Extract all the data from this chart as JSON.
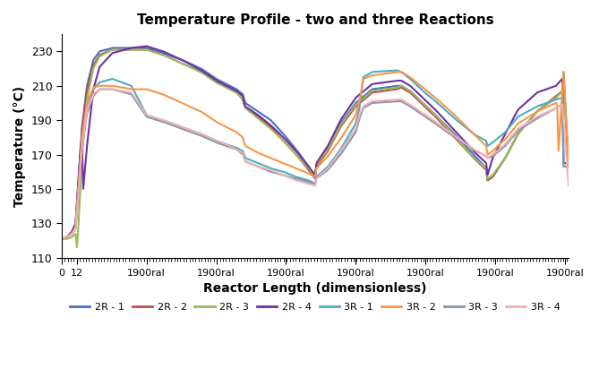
{
  "title": "Temperature Profile - two and three Reactions",
  "xlabel": "Reactor Length (dimensionless)",
  "ylabel": "Temperature (°C)",
  "ylim": [
    110,
    240
  ],
  "yticks": [
    110,
    130,
    150,
    170,
    190,
    210,
    230
  ],
  "xtick_positions": [
    0,
    12,
    67,
    122,
    177,
    232,
    287,
    342,
    397
  ],
  "xtick_labels": [
    "0",
    "12",
    "1900ral",
    "1900ral",
    "1900ral",
    "1900ral",
    "1900ral",
    "1900ral",
    "1900ral"
  ],
  "legend": [
    {
      "label": "2R - 1",
      "color": "#4472C4"
    },
    {
      "label": "2R - 2",
      "color": "#C0504D"
    },
    {
      "label": "2R - 3",
      "color": "#9BBB59"
    },
    {
      "label": "2R - 4",
      "color": "#7030A0"
    },
    {
      "label": "3R - 1",
      "color": "#4BACC6"
    },
    {
      "label": "3R - 2",
      "color": "#F79646"
    },
    {
      "label": "3R - 3",
      "color": "#8496B0"
    },
    {
      "label": "3R - 4",
      "color": "#F4AEAC"
    }
  ],
  "bg_color": "#FFFFFF",
  "line_width": 1.5,
  "xlim": [
    0,
    400
  ],
  "profiles": {
    "2R - 1": {
      "color": "#4472C4",
      "xpts": [
        0,
        4,
        8,
        11,
        13,
        16,
        20,
        25,
        30,
        40,
        55,
        67,
        80,
        95,
        110,
        122,
        130,
        138,
        143,
        144,
        145,
        155,
        165,
        175,
        185,
        195,
        200,
        201,
        210,
        220,
        232,
        245,
        265,
        268,
        275,
        285,
        295,
        310,
        325,
        335,
        336,
        340,
        350,
        360,
        375,
        390,
        395,
        396,
        400
      ],
      "ypts": [
        121,
        122,
        125,
        130,
        152,
        186,
        210,
        225,
        230,
        232,
        232,
        232,
        229,
        225,
        220,
        214,
        211,
        208,
        205,
        202,
        200,
        195,
        190,
        182,
        173,
        163,
        157,
        164,
        174,
        188,
        200,
        208,
        210,
        210,
        207,
        200,
        193,
        182,
        170,
        162,
        155,
        157,
        168,
        182,
        195,
        203,
        207,
        218,
        163
      ]
    },
    "2R - 2": {
      "color": "#C0504D",
      "xpts": [
        0,
        4,
        8,
        11,
        13,
        16,
        20,
        25,
        30,
        40,
        55,
        67,
        80,
        95,
        110,
        122,
        130,
        138,
        143,
        144,
        145,
        155,
        165,
        175,
        185,
        195,
        200,
        201,
        210,
        220,
        232,
        245,
        265,
        268,
        275,
        285,
        295,
        310,
        325,
        335,
        336,
        340,
        350,
        360,
        375,
        390,
        395,
        396,
        400
      ],
      "ypts": [
        121,
        122,
        125,
        129,
        150,
        183,
        207,
        222,
        228,
        231,
        231,
        231,
        228,
        223,
        218,
        212,
        209,
        206,
        202,
        199,
        197,
        192,
        186,
        178,
        170,
        161,
        156,
        163,
        172,
        186,
        198,
        206,
        208,
        209,
        206,
        199,
        192,
        180,
        168,
        161,
        155,
        157,
        168,
        182,
        195,
        204,
        207,
        211,
        163
      ]
    },
    "2R - 3": {
      "color": "#9BBB59",
      "xpts": [
        0,
        4,
        8,
        11,
        12,
        13,
        16,
        20,
        25,
        30,
        40,
        55,
        67,
        80,
        95,
        110,
        122,
        130,
        138,
        143,
        144,
        145,
        155,
        165,
        175,
        185,
        195,
        200,
        201,
        210,
        220,
        232,
        245,
        265,
        268,
        275,
        285,
        295,
        310,
        325,
        335,
        336,
        340,
        350,
        360,
        375,
        390,
        395,
        396,
        400
      ],
      "ypts": [
        121,
        121,
        122,
        124,
        116,
        125,
        168,
        202,
        220,
        227,
        231,
        231,
        231,
        228,
        223,
        218,
        212,
        209,
        206,
        202,
        199,
        197,
        191,
        185,
        178,
        170,
        162,
        157,
        164,
        173,
        187,
        199,
        207,
        209,
        210,
        207,
        200,
        193,
        181,
        168,
        162,
        156,
        158,
        168,
        182,
        195,
        203,
        207,
        212,
        163
      ]
    },
    "2R - 4": {
      "color": "#7030A0",
      "xpts": [
        0,
        4,
        8,
        11,
        13,
        15,
        16,
        17,
        20,
        25,
        30,
        40,
        55,
        67,
        80,
        95,
        110,
        122,
        130,
        138,
        143,
        144,
        145,
        155,
        165,
        175,
        185,
        195,
        200,
        201,
        210,
        220,
        232,
        245,
        265,
        268,
        275,
        285,
        295,
        310,
        325,
        335,
        336,
        340,
        350,
        360,
        375,
        390,
        395,
        396,
        400
      ],
      "ypts": [
        121,
        122,
        125,
        130,
        152,
        175,
        178,
        150,
        175,
        208,
        221,
        229,
        232,
        233,
        230,
        225,
        219,
        213,
        210,
        207,
        204,
        200,
        198,
        193,
        187,
        180,
        172,
        163,
        158,
        165,
        175,
        190,
        203,
        211,
        213,
        213,
        210,
        203,
        196,
        184,
        172,
        165,
        158,
        168,
        182,
        196,
        206,
        210,
        214,
        165,
        165
      ]
    },
    "3R - 1": {
      "color": "#4BACC6",
      "xpts": [
        0,
        4,
        8,
        11,
        13,
        16,
        20,
        25,
        30,
        40,
        55,
        67,
        80,
        95,
        110,
        122,
        130,
        138,
        143,
        144,
        145,
        155,
        165,
        175,
        185,
        195,
        200,
        201,
        210,
        220,
        232,
        235,
        238,
        245,
        265,
        268,
        275,
        285,
        295,
        310,
        325,
        335,
        336,
        340,
        350,
        360,
        375,
        390,
        395,
        396,
        400
      ],
      "ypts": [
        121,
        122,
        124,
        127,
        145,
        176,
        198,
        208,
        212,
        214,
        210,
        193,
        190,
        186,
        182,
        178,
        176,
        174,
        172,
        170,
        168,
        165,
        162,
        160,
        157,
        155,
        153,
        157,
        163,
        173,
        188,
        197,
        215,
        218,
        219,
        218,
        214,
        207,
        201,
        191,
        182,
        178,
        175,
        177,
        183,
        192,
        198,
        202,
        203,
        163,
        163
      ]
    },
    "3R - 2": {
      "color": "#F79646",
      "xpts": [
        0,
        4,
        8,
        11,
        13,
        16,
        20,
        25,
        30,
        40,
        55,
        67,
        80,
        95,
        110,
        122,
        130,
        138,
        143,
        144,
        145,
        155,
        165,
        175,
        185,
        195,
        200,
        201,
        210,
        220,
        232,
        235,
        238,
        245,
        265,
        268,
        275,
        285,
        295,
        310,
        325,
        335,
        336,
        340,
        350,
        360,
        375,
        390,
        391,
        392,
        396,
        400
      ],
      "ypts": [
        121,
        122,
        124,
        128,
        148,
        180,
        200,
        209,
        210,
        210,
        208,
        208,
        205,
        200,
        195,
        189,
        186,
        183,
        180,
        177,
        175,
        171,
        168,
        165,
        162,
        159,
        157,
        162,
        169,
        179,
        193,
        201,
        214,
        216,
        218,
        218,
        215,
        209,
        203,
        193,
        182,
        175,
        170,
        172,
        179,
        188,
        195,
        200,
        199,
        172,
        218,
        165
      ]
    },
    "3R - 3": {
      "color": "#8496B0",
      "xpts": [
        0,
        4,
        8,
        11,
        13,
        16,
        20,
        25,
        30,
        40,
        55,
        67,
        80,
        95,
        110,
        122,
        130,
        138,
        143,
        144,
        145,
        155,
        165,
        175,
        185,
        195,
        200,
        201,
        210,
        220,
        232,
        235,
        238,
        245,
        265,
        268,
        275,
        285,
        295,
        310,
        325,
        335,
        336,
        340,
        350,
        360,
        375,
        390,
        395,
        396,
        400
      ],
      "ypts": [
        121,
        122,
        124,
        127,
        144,
        173,
        194,
        204,
        208,
        208,
        205,
        192,
        189,
        185,
        181,
        177,
        175,
        173,
        170,
        168,
        166,
        163,
        160,
        158,
        156,
        154,
        153,
        156,
        161,
        170,
        183,
        191,
        197,
        200,
        201,
        201,
        198,
        193,
        188,
        180,
        173,
        169,
        168,
        169,
        175,
        184,
        191,
        197,
        199,
        163,
        163
      ]
    },
    "3R - 4": {
      "color": "#F4AEAC",
      "xpts": [
        0,
        4,
        8,
        11,
        13,
        16,
        20,
        25,
        30,
        40,
        55,
        67,
        80,
        95,
        110,
        122,
        130,
        138,
        143,
        144,
        145,
        155,
        165,
        175,
        185,
        195,
        200,
        201,
        210,
        220,
        232,
        235,
        238,
        245,
        265,
        268,
        275,
        285,
        295,
        310,
        325,
        335,
        336,
        340,
        350,
        360,
        375,
        390,
        395,
        400
      ],
      "ypts": [
        121,
        122,
        124,
        127,
        145,
        174,
        196,
        205,
        208,
        208,
        206,
        193,
        190,
        186,
        182,
        178,
        176,
        173,
        171,
        168,
        166,
        163,
        161,
        158,
        155,
        153,
        152,
        156,
        162,
        172,
        185,
        193,
        198,
        201,
        202,
        202,
        199,
        194,
        189,
        181,
        173,
        169,
        168,
        170,
        176,
        185,
        192,
        197,
        199,
        152
      ]
    }
  }
}
